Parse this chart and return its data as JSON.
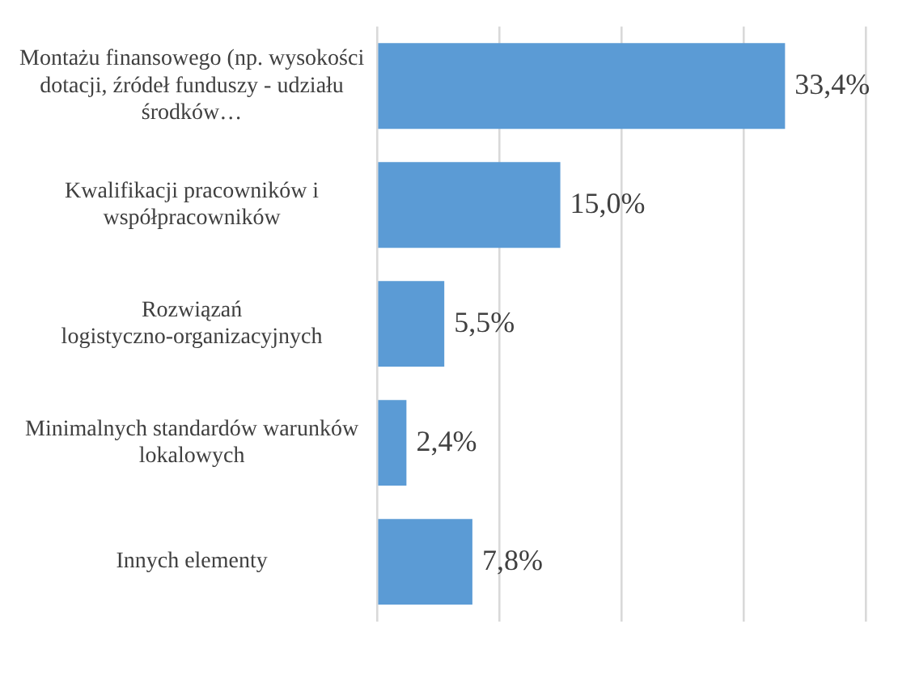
{
  "chart_data": {
    "type": "bar",
    "orientation": "horizontal",
    "categories": [
      "Montażu finansowego (np. wysokości dotacji, źródeł funduszy - udziału środków…",
      "Kwalifikacji pracowników i współpracowników",
      "Rozwiązań logistyczno-organizacyjnych",
      "Minimalnych standardów warunków lokalowych",
      "Innych elementy"
    ],
    "values": [
      33.4,
      15.0,
      5.5,
      2.4,
      7.8
    ],
    "value_labels": [
      "33,4%",
      "15,0%",
      "5,5%",
      "2,4%",
      "7,8%"
    ],
    "color": "#5b9bd5",
    "xlim": [
      0,
      40
    ],
    "xticks": [
      {
        "value": 0,
        "label": null
      },
      {
        "value": 10,
        "label": null
      },
      {
        "value": 20,
        "label": null
      },
      {
        "value": 30,
        "label": null
      },
      {
        "value": 40,
        "label": null
      }
    ],
    "grid": "x",
    "tick_labels": "y",
    "legend": false
  }
}
